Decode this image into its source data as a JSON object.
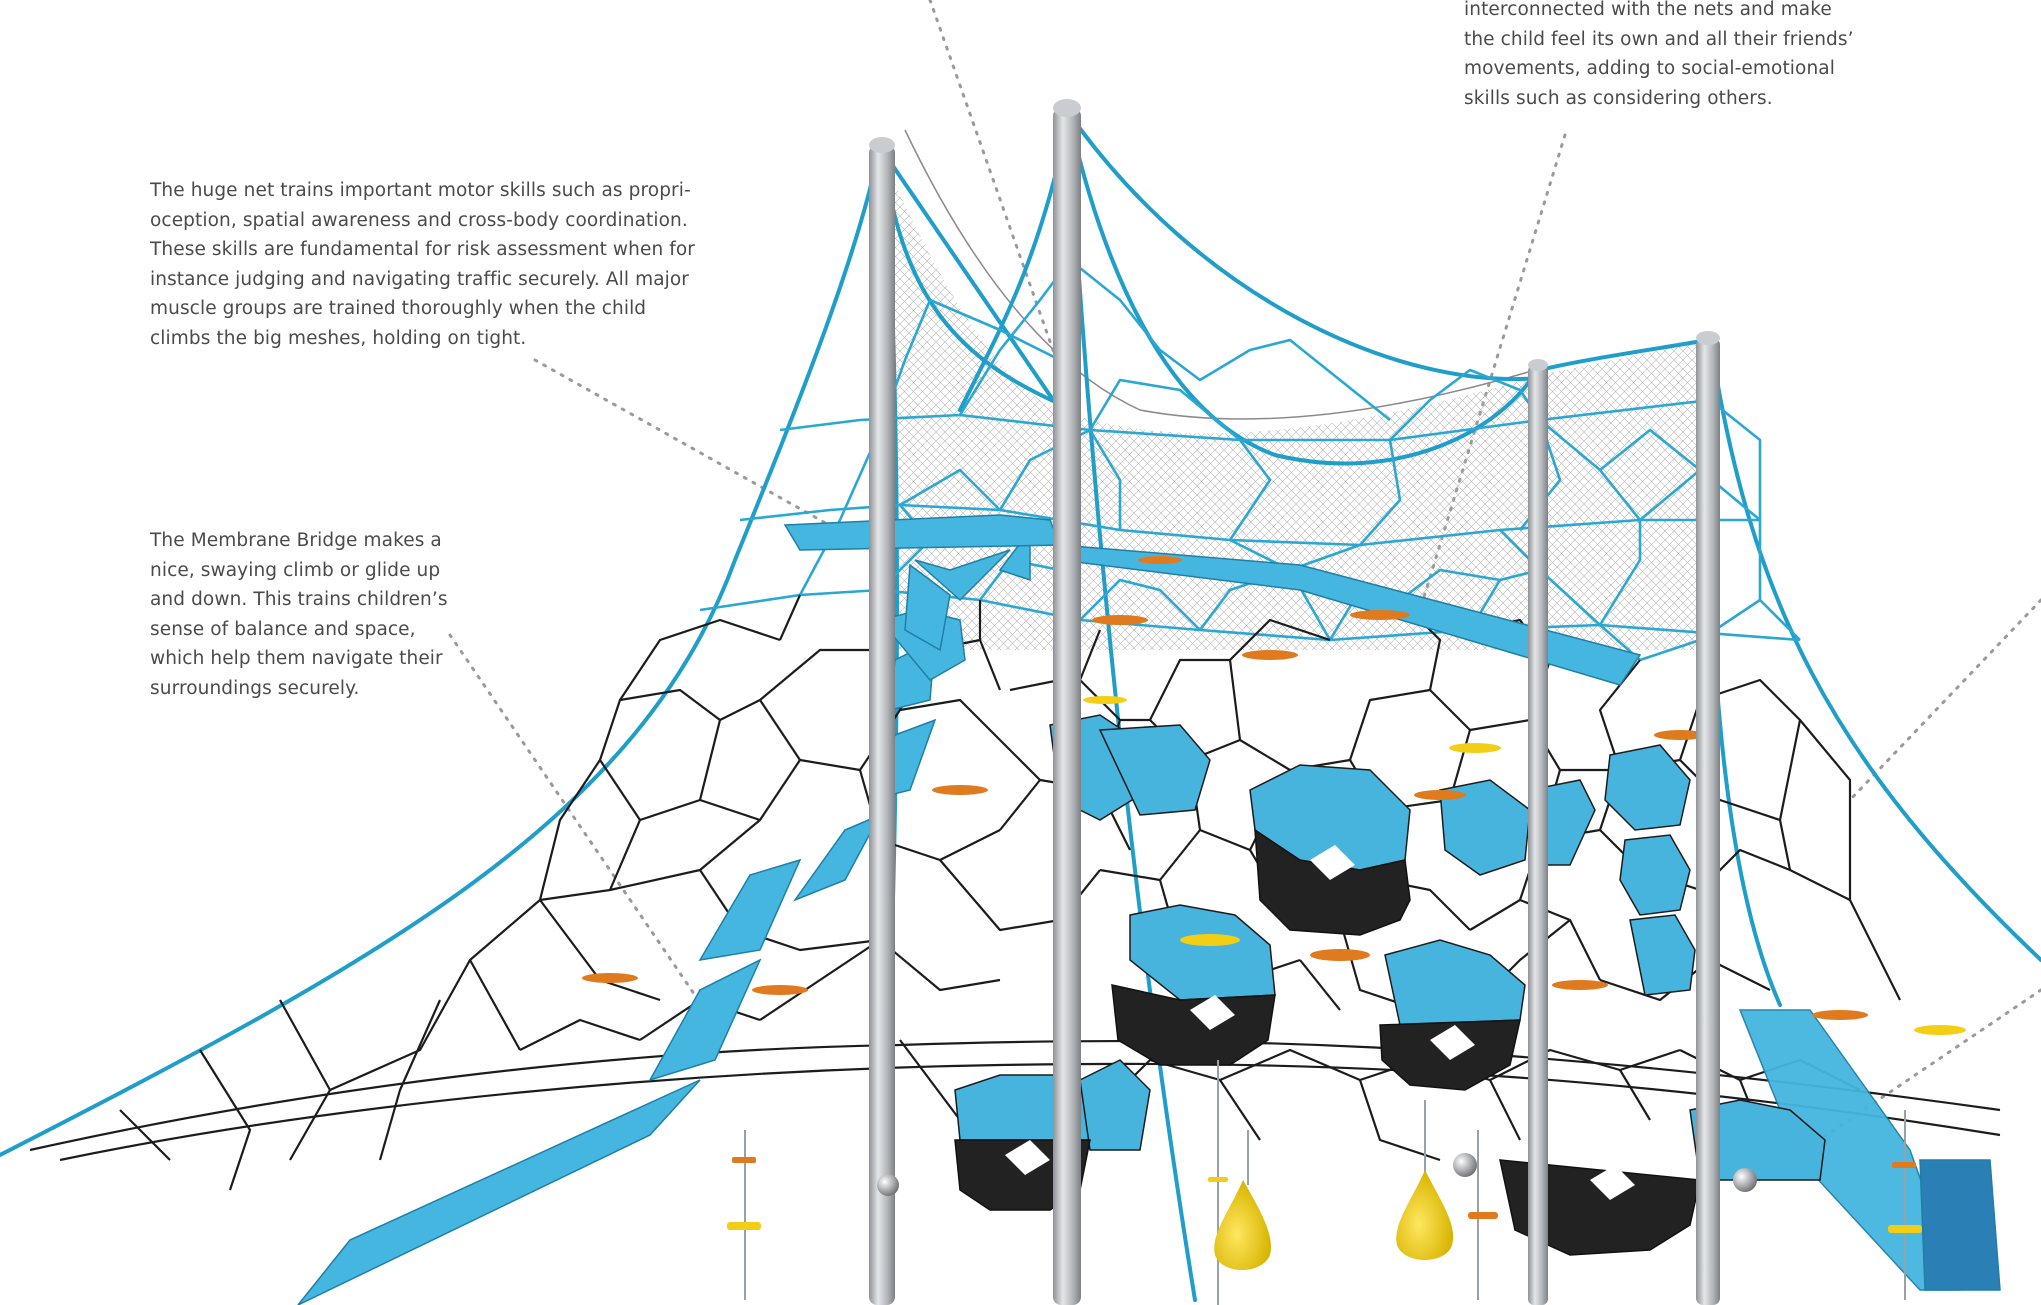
{
  "captions": {
    "net_skills": {
      "lines": [
        "The huge net trains important motor skills such as propri-",
        "oception, spatial awareness and cross-body coordination.",
        "These skills are fundamental for risk assessment when for",
        "instance judging and navigating traffic securely. All major",
        "muscle groups are trained thoroughly when the child",
        "climbs the big meshes, holding on tight."
      ]
    },
    "membrane_bridge": {
      "lines": [
        "The Membrane Bridge makes a",
        "nice, swaying climb or glide up",
        "and down. This trains children’s",
        "sense of balance and space,",
        "which help them navigate their",
        "surroundings securely."
      ]
    },
    "interconnected": {
      "lines": [
        "interconnected with the nets and make",
        "the child feel its own and all their friends’",
        "movements, adding to social-emotional",
        "skills such as considering others."
      ]
    }
  },
  "colors": {
    "text": "#4a4a4a",
    "rope_blue": "#1f9ec9",
    "panel_blue": "#45b6df",
    "net_black": "#1c1c1c",
    "pole_grey": "#b9bcc0",
    "canopy_net": "#9a9a9a",
    "bell_yellow": "#f2cf16",
    "pad_orange": "#e07a1e",
    "leader_dots": "#9a9a9a"
  },
  "icons": {
    "illustration": "rope-climbing-tower-illustration"
  }
}
